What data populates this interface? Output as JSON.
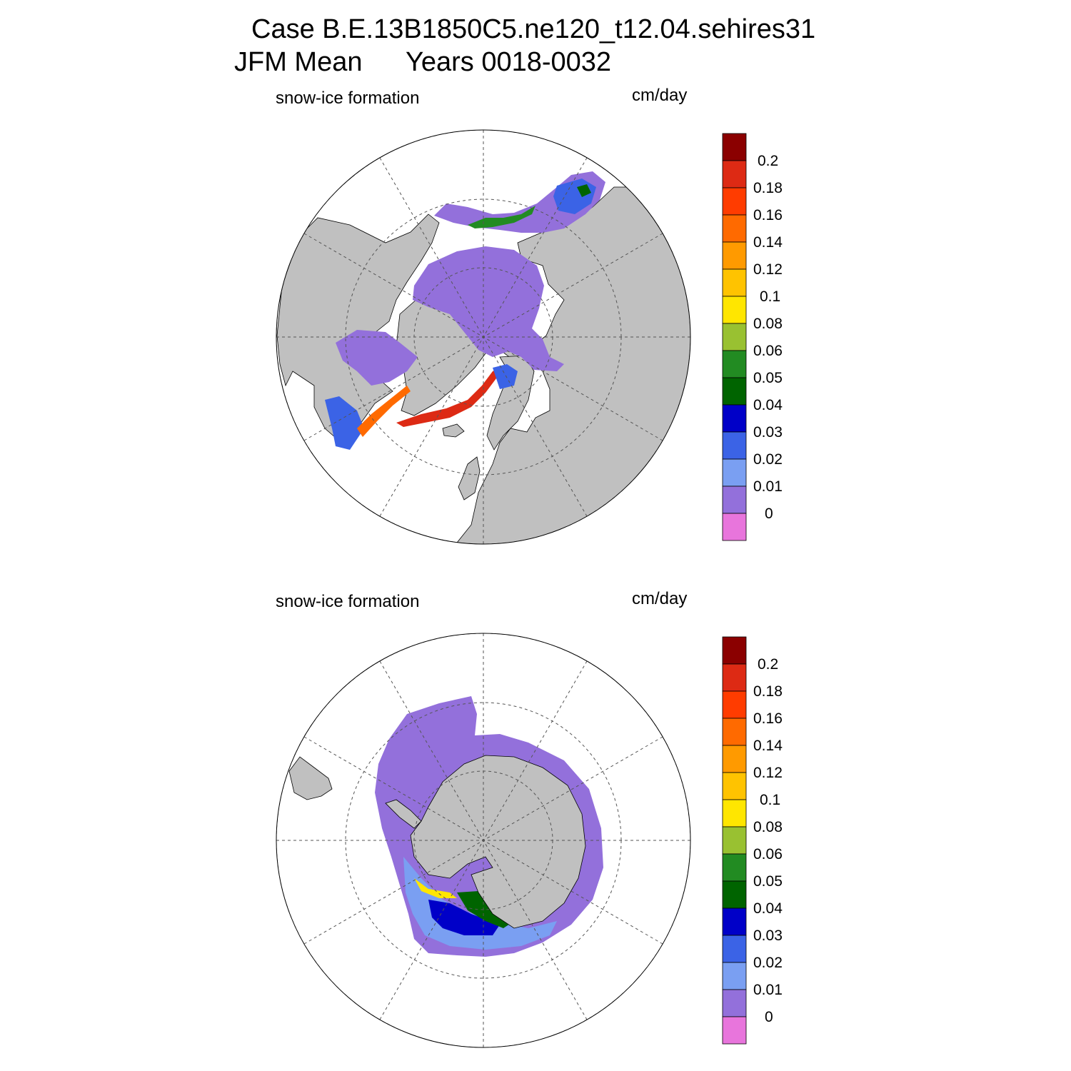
{
  "title": {
    "line1": "Case B.E.13B1850C5.ne120_t12.04.sehires31",
    "line2_left": "JFM Mean",
    "line2_right": "Years 0018-0032"
  },
  "panels": [
    {
      "id": "north",
      "hemisphere": "Arctic",
      "left_label": "snow-ice formation",
      "right_label": "cm/day"
    },
    {
      "id": "south",
      "hemisphere": "Antarctic",
      "left_label": "snow-ice formation",
      "right_label": "cm/day"
    }
  ],
  "colorbar": {
    "tick_labels": [
      "0.2",
      "0.18",
      "0.16",
      "0.14",
      "0.12",
      "0.1",
      "0.08",
      "0.06",
      "0.05",
      "0.04",
      "0.03",
      "0.02",
      "0.01",
      "0"
    ],
    "colors_top_to_bottom": [
      "#8b0000",
      "#dd2a14",
      "#ff3c00",
      "#ff6a00",
      "#ff9a00",
      "#ffc300",
      "#ffe600",
      "#99c131",
      "#228b22",
      "#006400",
      "#0000c8",
      "#3b63e6",
      "#7a9ff2",
      "#9370db",
      "#e875dc"
    ]
  },
  "colors": {
    "land": "#c0c0c0",
    "ocean": "#ffffff",
    "zero_ice": "#9370db"
  }
}
